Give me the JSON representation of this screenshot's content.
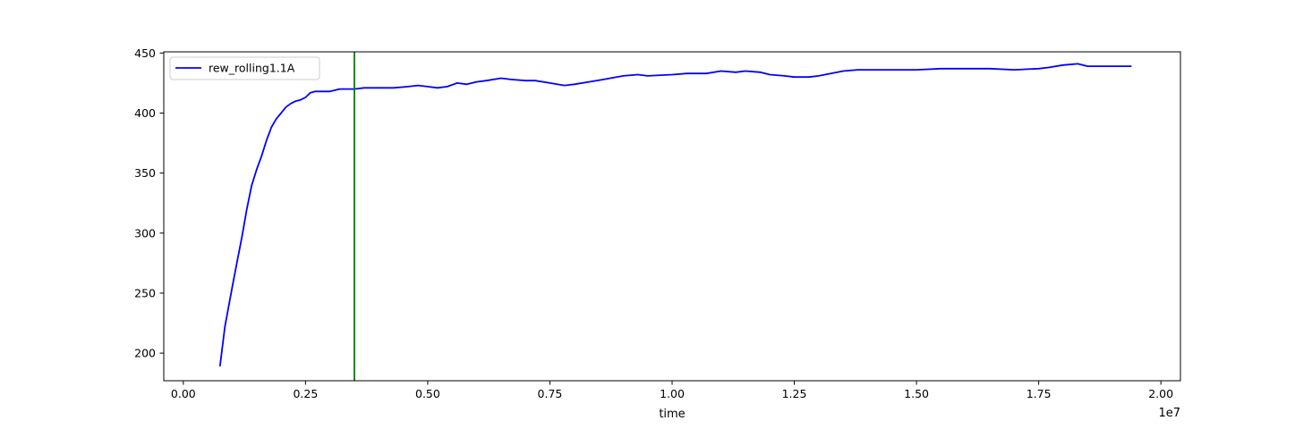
{
  "chart_data": {
    "type": "line",
    "title": "",
    "xlabel": "time",
    "ylabel": "",
    "x_offset_label": "1e7",
    "xlim": [
      -0.04,
      2.04
    ],
    "ylim": [
      177,
      451
    ],
    "xticks": [
      0.0,
      0.25,
      0.5,
      0.75,
      1.0,
      1.25,
      1.5,
      1.75,
      2.0
    ],
    "xtick_labels": [
      "0.00",
      "0.25",
      "0.50",
      "0.75",
      "1.00",
      "1.25",
      "1.50",
      "1.75",
      "2.00"
    ],
    "yticks": [
      200,
      250,
      300,
      350,
      400,
      450
    ],
    "ytick_labels": [
      "200",
      "250",
      "300",
      "350",
      "400",
      "450"
    ],
    "grid": false,
    "legend_position": "top-left",
    "vline": {
      "x": 0.35,
      "color": "#008000"
    },
    "series": [
      {
        "name": "rew_rolling1.1A",
        "color": "#0000ff",
        "x": [
          0.075,
          0.085,
          0.1,
          0.11,
          0.12,
          0.13,
          0.14,
          0.15,
          0.16,
          0.17,
          0.18,
          0.19,
          0.2,
          0.21,
          0.22,
          0.23,
          0.24,
          0.25,
          0.26,
          0.27,
          0.28,
          0.29,
          0.3,
          0.32,
          0.35,
          0.37,
          0.4,
          0.43,
          0.46,
          0.48,
          0.5,
          0.52,
          0.54,
          0.56,
          0.58,
          0.6,
          0.62,
          0.65,
          0.67,
          0.7,
          0.72,
          0.75,
          0.78,
          0.8,
          0.83,
          0.86,
          0.9,
          0.93,
          0.95,
          1.0,
          1.03,
          1.05,
          1.07,
          1.1,
          1.13,
          1.15,
          1.18,
          1.2,
          1.23,
          1.25,
          1.28,
          1.3,
          1.35,
          1.38,
          1.4,
          1.45,
          1.5,
          1.55,
          1.58,
          1.6,
          1.65,
          1.7,
          1.75,
          1.77,
          1.8,
          1.83,
          1.85,
          1.9,
          1.94
        ],
        "y": [
          189,
          222,
          255,
          276,
          297,
          320,
          340,
          353,
          364,
          377,
          388,
          395,
          400,
          405,
          408,
          410,
          411,
          413,
          417,
          418,
          418,
          418,
          418,
          420,
          420,
          421,
          421,
          421,
          422,
          423,
          422,
          421,
          422,
          425,
          424,
          426,
          427,
          429,
          428,
          427,
          427,
          425,
          423,
          424,
          426,
          428,
          431,
          432,
          431,
          432,
          433,
          433,
          433,
          435,
          434,
          435,
          434,
          432,
          431,
          430,
          430,
          431,
          435,
          436,
          436,
          436,
          436,
          437,
          437,
          437,
          437,
          436,
          437,
          438,
          440,
          441,
          439,
          439,
          439
        ]
      }
    ]
  }
}
